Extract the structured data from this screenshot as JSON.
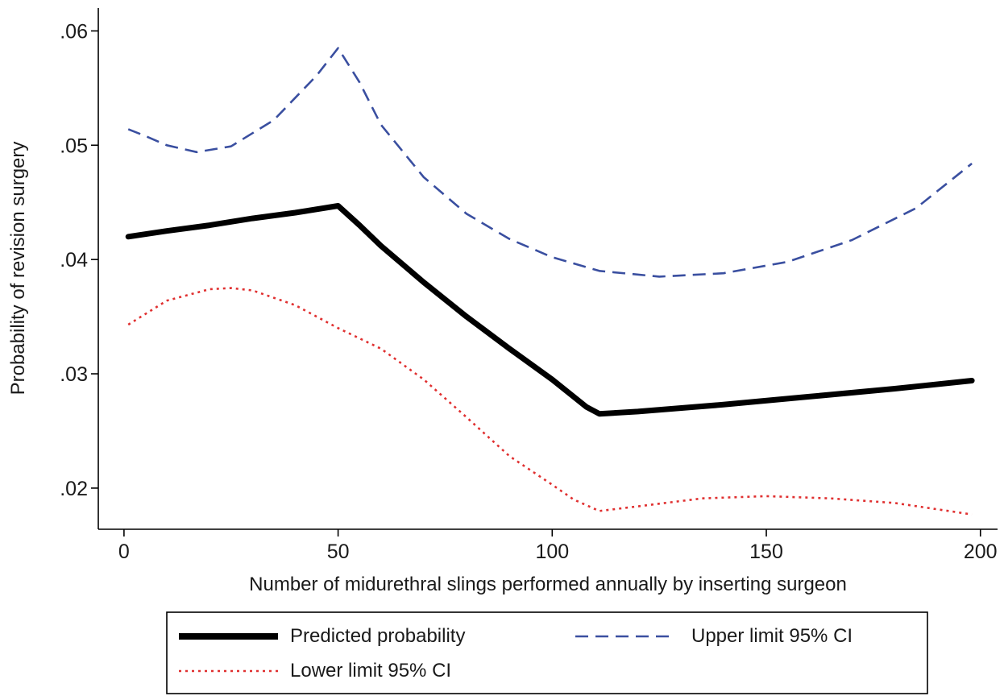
{
  "chart_data": {
    "type": "line",
    "title": "",
    "xlabel": "Number of midurethral slings performed annually by inserting surgeon",
    "ylabel": "Probability of revision surgery",
    "xlim": [
      -6,
      204
    ],
    "ylim": [
      0.0164,
      0.062
    ],
    "xticks": [
      0,
      50,
      100,
      150,
      200
    ],
    "yticks": [
      0.02,
      0.03,
      0.04,
      0.05,
      0.06
    ],
    "xtick_labels": [
      "0",
      "50",
      "100",
      "150",
      "200"
    ],
    "ytick_labels": [
      ".02",
      ".03",
      ".04",
      ".05",
      ".06"
    ],
    "grid": false,
    "legend_position": "bottom",
    "series": [
      {
        "name": "Predicted probability",
        "color": "#000000",
        "style": "solid-thick",
        "points": [
          [
            1,
            0.042
          ],
          [
            10,
            0.0425
          ],
          [
            20,
            0.043
          ],
          [
            30,
            0.0436
          ],
          [
            40,
            0.0441
          ],
          [
            50,
            0.0447
          ],
          [
            55,
            0.043
          ],
          [
            60,
            0.0412
          ],
          [
            70,
            0.038
          ],
          [
            80,
            0.035
          ],
          [
            90,
            0.0322
          ],
          [
            100,
            0.0295
          ],
          [
            108,
            0.0271
          ],
          [
            111,
            0.0265
          ],
          [
            120,
            0.0267
          ],
          [
            140,
            0.0273
          ],
          [
            160,
            0.028
          ],
          [
            180,
            0.0287
          ],
          [
            198,
            0.0294
          ]
        ]
      },
      {
        "name": "Upper limit 95% CI",
        "color": "#3a4fa0",
        "style": "dashed",
        "points": [
          [
            1,
            0.0514
          ],
          [
            5,
            0.0508
          ],
          [
            10,
            0.05
          ],
          [
            17,
            0.0494
          ],
          [
            25,
            0.0499
          ],
          [
            35,
            0.0522
          ],
          [
            45,
            0.0561
          ],
          [
            50,
            0.0585
          ],
          [
            55,
            0.0555
          ],
          [
            60,
            0.0518
          ],
          [
            70,
            0.0472
          ],
          [
            80,
            0.044
          ],
          [
            90,
            0.0418
          ],
          [
            100,
            0.0402
          ],
          [
            111,
            0.039
          ],
          [
            125,
            0.0385
          ],
          [
            140,
            0.0388
          ],
          [
            155,
            0.0398
          ],
          [
            170,
            0.0417
          ],
          [
            185,
            0.0445
          ],
          [
            198,
            0.0484
          ]
        ]
      },
      {
        "name": "Lower limit 95% CI",
        "color": "#e03030",
        "style": "dotted",
        "points": [
          [
            1,
            0.0343
          ],
          [
            10,
            0.0364
          ],
          [
            20,
            0.0374
          ],
          [
            25,
            0.0375
          ],
          [
            30,
            0.0373
          ],
          [
            40,
            0.036
          ],
          [
            50,
            0.034
          ],
          [
            60,
            0.0322
          ],
          [
            70,
            0.0295
          ],
          [
            80,
            0.0262
          ],
          [
            90,
            0.0228
          ],
          [
            100,
            0.0203
          ],
          [
            105,
            0.019
          ],
          [
            111,
            0.018
          ],
          [
            120,
            0.0184
          ],
          [
            135,
            0.0191
          ],
          [
            150,
            0.0193
          ],
          [
            165,
            0.0191
          ],
          [
            180,
            0.0187
          ],
          [
            198,
            0.0177
          ]
        ]
      }
    ],
    "legend": {
      "items": [
        {
          "label": "Predicted probability",
          "style": "solid-thick",
          "color": "#000000"
        },
        {
          "label": "Upper limit 95% CI",
          "style": "dashed",
          "color": "#3a4fa0"
        },
        {
          "label": "Lower limit 95% CI",
          "style": "dotted",
          "color": "#e03030"
        }
      ]
    }
  }
}
